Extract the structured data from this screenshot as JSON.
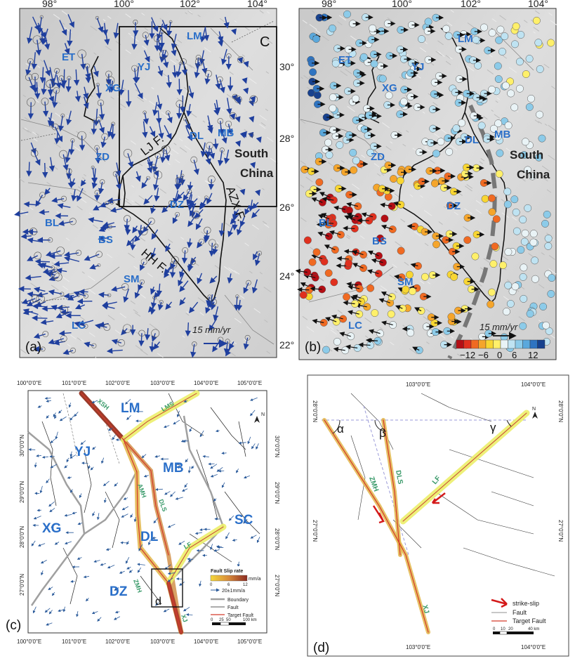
{
  "panels": {
    "a": {
      "label": "(a)",
      "inset_letter": "C",
      "scale_label": "15 mm/yr"
    },
    "b": {
      "label": "(b)",
      "scale_label": "15 mm/yr",
      "colorbar_ticks": [
        "−12",
        "−6",
        "0",
        "6",
        "12"
      ],
      "colorbar_colors": [
        "#b40e14",
        "#e0301e",
        "#f06a22",
        "#f5a52b",
        "#f8d632",
        "#fff06a",
        "#e9f3f6",
        "#bfe3f2",
        "#8ccbe9",
        "#5aa8dc",
        "#2f74c1",
        "#17418e"
      ]
    },
    "c": {
      "label": "(c)",
      "inset_letter": "d"
    },
    "d": {
      "label": "(d)"
    }
  },
  "top_axes": {
    "x_ticks": [
      "98°",
      "100°",
      "102°",
      "104°"
    ],
    "y_ticks": [
      "30°",
      "28°",
      "26°",
      "24°",
      "22°"
    ]
  },
  "blocks_ab": [
    "ET",
    "YJ",
    "LM",
    "XG",
    "DL",
    "MB",
    "ZD",
    "DZ",
    "BL",
    "BS",
    "SM",
    "LC"
  ],
  "region_ab": [
    "South",
    "China"
  ],
  "faults_a": [
    "LJ F.",
    "AZX F.",
    "HH F."
  ],
  "c_axes": {
    "x_ticks": [
      "100°0'0\"E",
      "101°0'0\"E",
      "102°0'0\"E",
      "103°0'0\"E",
      "104°0'0\"E",
      "105°0'0\"E"
    ],
    "y_ticks": [
      "30°0'0\"N",
      "29°0'0\"N",
      "28°0'0\"N",
      "27°0'0\"N"
    ]
  },
  "blocks_c": [
    "LM",
    "YJ",
    "MB",
    "XG",
    "DL",
    "SC",
    "DZ"
  ],
  "faults_c": [
    "XSH",
    "LMS",
    "AMH",
    "DLS",
    "LF",
    "ZMH",
    "XJ"
  ],
  "legend_c": {
    "title": "Fault Slip rate",
    "unit": "mm/a",
    "ticks": [
      "0",
      "6",
      "12"
    ],
    "arrow_label": "20±1mm/a",
    "boundary": "Boundary",
    "fault": "Fault",
    "target": "Target Fault",
    "scale": [
      "0",
      "25",
      "50",
      "100 km"
    ]
  },
  "d_axes": {
    "x_ticks": [
      "103°0'0\"E",
      "104°0'0\"E"
    ],
    "y_ticks": [
      "28°0'0\"N",
      "27°0'0\"N"
    ]
  },
  "faults_d": [
    "ZMH",
    "DLS",
    "LF",
    "XJ"
  ],
  "angles_d": [
    "α",
    "β",
    "γ"
  ],
  "legend_d": {
    "strike": "strike-slip",
    "fault": "Fault",
    "target": "Target Fault",
    "scale": [
      "0",
      "10",
      "20",
      "40 km"
    ]
  },
  "north": "N"
}
